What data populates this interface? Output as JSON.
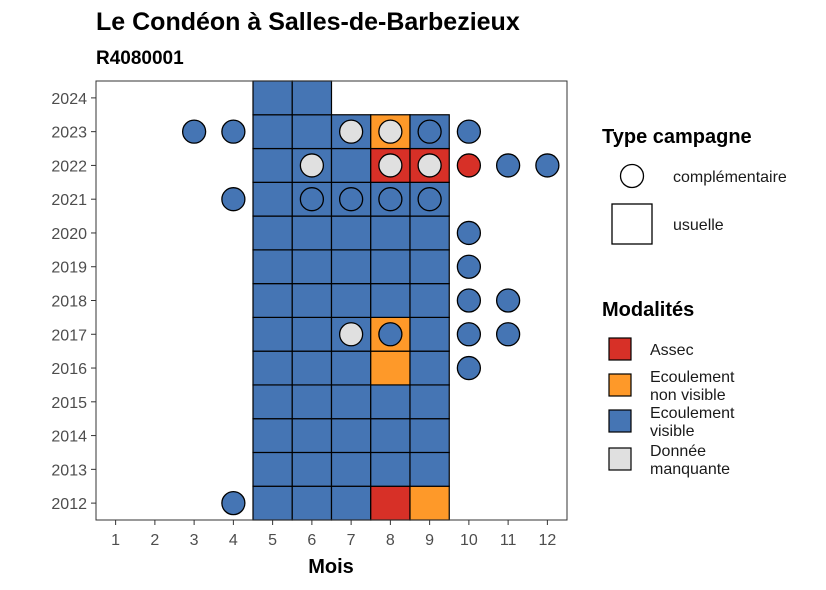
{
  "chart_data": {
    "type": "heatmap",
    "title": "Le Condéon à Salles-de-Barbezieux",
    "subtitle": "R4080001",
    "xlabel": "Mois",
    "ylabel": "",
    "x_ticks": [
      "1",
      "2",
      "3",
      "4",
      "5",
      "6",
      "7",
      "8",
      "9",
      "10",
      "11",
      "12"
    ],
    "y_ticks": [
      "2012",
      "2013",
      "2014",
      "2015",
      "2016",
      "2017",
      "2018",
      "2019",
      "2020",
      "2021",
      "2022",
      "2023",
      "2024"
    ],
    "xlim": [
      0.5,
      12.5
    ],
    "ylim": [
      2011.5,
      2024.5
    ],
    "colors": {
      "Assec": "#d73027",
      "Ecoulement non visible": "#fe9929",
      "Ecoulement visible": "#4575b4",
      "Donnée manquante": "#e0e0e0"
    },
    "usuelle": [
      {
        "year": 2012,
        "month": 5,
        "value": "Ecoulement visible"
      },
      {
        "year": 2012,
        "month": 6,
        "value": "Ecoulement visible"
      },
      {
        "year": 2012,
        "month": 7,
        "value": "Ecoulement visible"
      },
      {
        "year": 2012,
        "month": 8,
        "value": "Assec"
      },
      {
        "year": 2012,
        "month": 9,
        "value": "Ecoulement non visible"
      },
      {
        "year": 2013,
        "month": 5,
        "value": "Ecoulement visible"
      },
      {
        "year": 2013,
        "month": 6,
        "value": "Ecoulement visible"
      },
      {
        "year": 2013,
        "month": 7,
        "value": "Ecoulement visible"
      },
      {
        "year": 2013,
        "month": 8,
        "value": "Ecoulement visible"
      },
      {
        "year": 2013,
        "month": 9,
        "value": "Ecoulement visible"
      },
      {
        "year": 2014,
        "month": 5,
        "value": "Ecoulement visible"
      },
      {
        "year": 2014,
        "month": 6,
        "value": "Ecoulement visible"
      },
      {
        "year": 2014,
        "month": 7,
        "value": "Ecoulement visible"
      },
      {
        "year": 2014,
        "month": 8,
        "value": "Ecoulement visible"
      },
      {
        "year": 2014,
        "month": 9,
        "value": "Ecoulement visible"
      },
      {
        "year": 2015,
        "month": 5,
        "value": "Ecoulement visible"
      },
      {
        "year": 2015,
        "month": 6,
        "value": "Ecoulement visible"
      },
      {
        "year": 2015,
        "month": 7,
        "value": "Ecoulement visible"
      },
      {
        "year": 2015,
        "month": 8,
        "value": "Ecoulement visible"
      },
      {
        "year": 2015,
        "month": 9,
        "value": "Ecoulement visible"
      },
      {
        "year": 2016,
        "month": 5,
        "value": "Ecoulement visible"
      },
      {
        "year": 2016,
        "month": 6,
        "value": "Ecoulement visible"
      },
      {
        "year": 2016,
        "month": 7,
        "value": "Ecoulement visible"
      },
      {
        "year": 2016,
        "month": 8,
        "value": "Ecoulement non visible"
      },
      {
        "year": 2016,
        "month": 9,
        "value": "Ecoulement visible"
      },
      {
        "year": 2017,
        "month": 5,
        "value": "Ecoulement visible"
      },
      {
        "year": 2017,
        "month": 6,
        "value": "Ecoulement visible"
      },
      {
        "year": 2017,
        "month": 7,
        "value": "Ecoulement visible"
      },
      {
        "year": 2017,
        "month": 8,
        "value": "Ecoulement non visible"
      },
      {
        "year": 2017,
        "month": 9,
        "value": "Ecoulement visible"
      },
      {
        "year": 2018,
        "month": 5,
        "value": "Ecoulement visible"
      },
      {
        "year": 2018,
        "month": 6,
        "value": "Ecoulement visible"
      },
      {
        "year": 2018,
        "month": 7,
        "value": "Ecoulement visible"
      },
      {
        "year": 2018,
        "month": 8,
        "value": "Ecoulement visible"
      },
      {
        "year": 2018,
        "month": 9,
        "value": "Ecoulement visible"
      },
      {
        "year": 2019,
        "month": 5,
        "value": "Ecoulement visible"
      },
      {
        "year": 2019,
        "month": 6,
        "value": "Ecoulement visible"
      },
      {
        "year": 2019,
        "month": 7,
        "value": "Ecoulement visible"
      },
      {
        "year": 2019,
        "month": 8,
        "value": "Ecoulement visible"
      },
      {
        "year": 2019,
        "month": 9,
        "value": "Ecoulement visible"
      },
      {
        "year": 2020,
        "month": 5,
        "value": "Ecoulement visible"
      },
      {
        "year": 2020,
        "month": 6,
        "value": "Ecoulement visible"
      },
      {
        "year": 2020,
        "month": 7,
        "value": "Ecoulement visible"
      },
      {
        "year": 2020,
        "month": 8,
        "value": "Ecoulement visible"
      },
      {
        "year": 2020,
        "month": 9,
        "value": "Ecoulement visible"
      },
      {
        "year": 2021,
        "month": 5,
        "value": "Ecoulement visible"
      },
      {
        "year": 2021,
        "month": 6,
        "value": "Ecoulement visible"
      },
      {
        "year": 2021,
        "month": 7,
        "value": "Ecoulement visible"
      },
      {
        "year": 2021,
        "month": 8,
        "value": "Ecoulement visible"
      },
      {
        "year": 2021,
        "month": 9,
        "value": "Ecoulement visible"
      },
      {
        "year": 2022,
        "month": 5,
        "value": "Ecoulement visible"
      },
      {
        "year": 2022,
        "month": 6,
        "value": "Ecoulement visible"
      },
      {
        "year": 2022,
        "month": 7,
        "value": "Ecoulement visible"
      },
      {
        "year": 2022,
        "month": 8,
        "value": "Assec"
      },
      {
        "year": 2022,
        "month": 9,
        "value": "Assec"
      },
      {
        "year": 2023,
        "month": 5,
        "value": "Ecoulement visible"
      },
      {
        "year": 2023,
        "month": 6,
        "value": "Ecoulement visible"
      },
      {
        "year": 2023,
        "month": 7,
        "value": "Ecoulement visible"
      },
      {
        "year": 2023,
        "month": 8,
        "value": "Ecoulement non visible"
      },
      {
        "year": 2023,
        "month": 9,
        "value": "Ecoulement visible"
      },
      {
        "year": 2024,
        "month": 5,
        "value": "Ecoulement visible"
      },
      {
        "year": 2024,
        "month": 6,
        "value": "Ecoulement visible"
      }
    ],
    "complementaire": [
      {
        "year": 2012,
        "month": 4,
        "value": "Ecoulement visible"
      },
      {
        "year": 2016,
        "month": 10,
        "value": "Ecoulement visible"
      },
      {
        "year": 2017,
        "month": 7,
        "value": "Donnée manquante"
      },
      {
        "year": 2017,
        "month": 8,
        "value": "Ecoulement visible"
      },
      {
        "year": 2017,
        "month": 10,
        "value": "Ecoulement visible"
      },
      {
        "year": 2017,
        "month": 11,
        "value": "Ecoulement visible"
      },
      {
        "year": 2018,
        "month": 10,
        "value": "Ecoulement visible"
      },
      {
        "year": 2018,
        "month": 11,
        "value": "Ecoulement visible"
      },
      {
        "year": 2019,
        "month": 10,
        "value": "Ecoulement visible"
      },
      {
        "year": 2020,
        "month": 10,
        "value": "Ecoulement visible"
      },
      {
        "year": 2021,
        "month": 4,
        "value": "Ecoulement visible"
      },
      {
        "year": 2021,
        "month": 6,
        "value": "Ecoulement visible"
      },
      {
        "year": 2021,
        "month": 7,
        "value": "Ecoulement visible"
      },
      {
        "year": 2021,
        "month": 8,
        "value": "Ecoulement visible"
      },
      {
        "year": 2021,
        "month": 9,
        "value": "Ecoulement visible"
      },
      {
        "year": 2022,
        "month": 6,
        "value": "Donnée manquante"
      },
      {
        "year": 2022,
        "month": 8,
        "value": "Donnée manquante"
      },
      {
        "year": 2022,
        "month": 9,
        "value": "Donnée manquante"
      },
      {
        "year": 2022,
        "month": 10,
        "value": "Assec"
      },
      {
        "year": 2022,
        "month": 11,
        "value": "Ecoulement visible"
      },
      {
        "year": 2022,
        "month": 12,
        "value": "Ecoulement visible"
      },
      {
        "year": 2023,
        "month": 3,
        "value": "Ecoulement visible"
      },
      {
        "year": 2023,
        "month": 4,
        "value": "Ecoulement visible"
      },
      {
        "year": 2023,
        "month": 7,
        "value": "Donnée manquante"
      },
      {
        "year": 2023,
        "month": 8,
        "value": "Donnée manquante"
      },
      {
        "year": 2023,
        "month": 9,
        "value": "Ecoulement visible"
      },
      {
        "year": 2023,
        "month": 10,
        "value": "Ecoulement visible"
      }
    ],
    "legend": {
      "shape_title": "Type campagne",
      "shape_items": [
        {
          "label": "complémentaire",
          "shape": "circle"
        },
        {
          "label": "usuelle",
          "shape": "square"
        }
      ],
      "fill_title": "Modalités",
      "fill_items": [
        {
          "key": "Assec",
          "lines": [
            "Assec"
          ]
        },
        {
          "key": "Ecoulement non visible",
          "lines": [
            "Ecoulement",
            "non visible"
          ]
        },
        {
          "key": "Ecoulement visible",
          "lines": [
            "Ecoulement",
            "visible"
          ]
        },
        {
          "key": "Donnée manquante",
          "lines": [
            "Donnée",
            "manquante"
          ]
        }
      ],
      "placement": "right"
    },
    "grid": false
  }
}
